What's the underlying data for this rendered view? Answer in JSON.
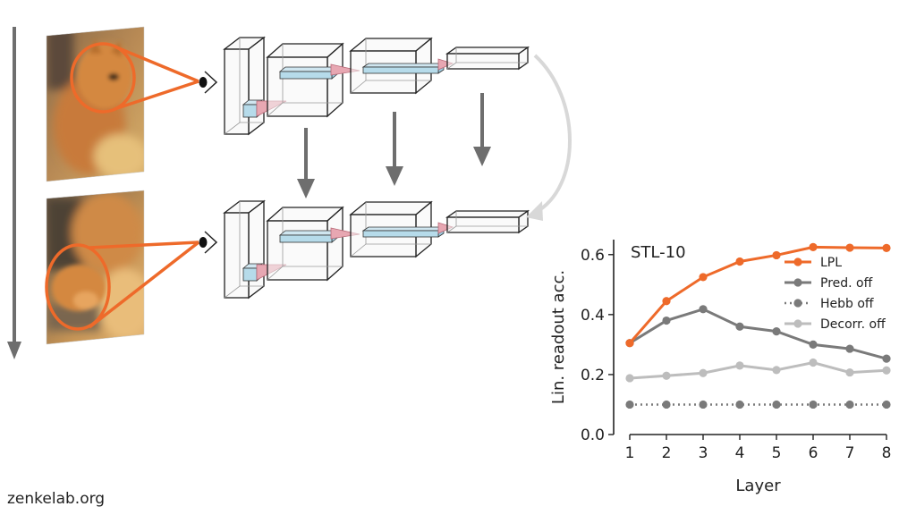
{
  "footer": {
    "site": "zenkelab.org"
  },
  "colors": {
    "accent_orange": "#ee6a2a",
    "arrow_gray": "#6e6e6e",
    "feedback_gray": "#d8d8d8",
    "filter_blue": "#a9d3e6",
    "filter_pink": "#e7a7b2"
  },
  "diagram": {
    "frames": [
      {
        "name": "cat-frame-head",
        "description_icon": "image-icon"
      },
      {
        "name": "cat-frame-paws",
        "description_icon": "image-icon"
      }
    ],
    "eye_icon": "eye-icon",
    "network_layers_per_row": 4
  },
  "chart_data": {
    "type": "line",
    "title": "STL-10",
    "xlabel": "Layer",
    "ylabel": "Lin. readout acc.",
    "x": [
      1,
      2,
      3,
      4,
      5,
      6,
      7,
      8
    ],
    "xlim": [
      1,
      8
    ],
    "ylim": [
      0.0,
      0.65
    ],
    "yticks": [
      "0.0",
      "0.2",
      "0.4",
      "0.6"
    ],
    "xticks": [
      "1",
      "2",
      "3",
      "4",
      "5",
      "6",
      "7",
      "8"
    ],
    "grid": false,
    "legend_position": "top-right",
    "series": [
      {
        "name": "LPL",
        "color": "#ee6a2a",
        "style": "solid",
        "values": [
          0.305,
          0.445,
          0.525,
          0.577,
          0.598,
          0.625,
          0.623,
          0.622
        ]
      },
      {
        "name": "Pred. off",
        "color": "#7a7a7a",
        "style": "solid",
        "values": [
          0.305,
          0.38,
          0.418,
          0.36,
          0.344,
          0.3,
          0.286,
          0.253
        ]
      },
      {
        "name": "Hebb off",
        "color": "#7a7a7a",
        "style": "dotted",
        "values": [
          0.1,
          0.1,
          0.1,
          0.1,
          0.1,
          0.1,
          0.1,
          0.1
        ]
      },
      {
        "name": "Decorr. off",
        "color": "#bdbdbd",
        "style": "solid",
        "values": [
          0.188,
          0.196,
          0.205,
          0.23,
          0.215,
          0.24,
          0.207,
          0.214
        ]
      }
    ]
  }
}
